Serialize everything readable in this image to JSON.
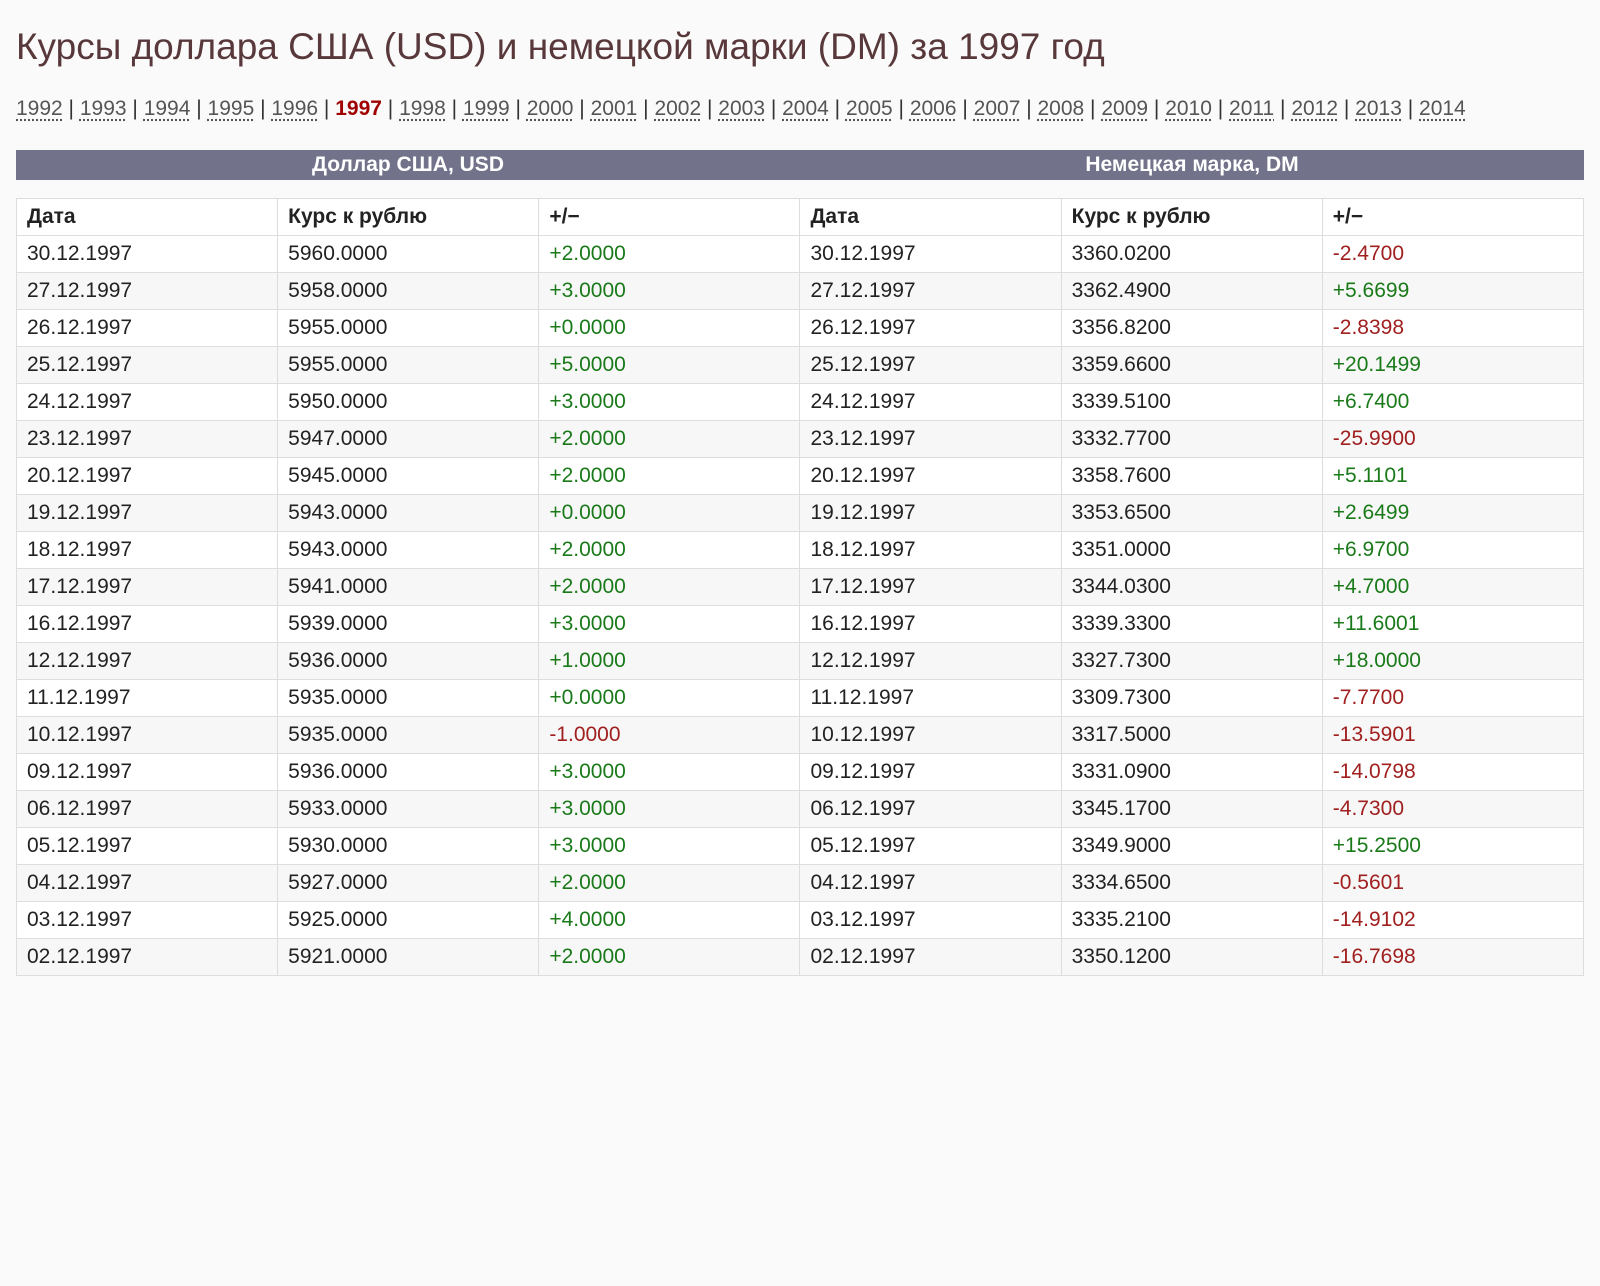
{
  "title": "Курсы доллара США (USD) и немецкой марки (DM) за 1997 год",
  "years": {
    "list": [
      "1992",
      "1993",
      "1994",
      "1995",
      "1996",
      "1997",
      "1998",
      "1999",
      "2000",
      "2001",
      "2002",
      "2003",
      "2004",
      "2005",
      "2006",
      "2007",
      "2008",
      "2009",
      "2010",
      "2011",
      "2012",
      "2013",
      "2014"
    ],
    "current": "1997"
  },
  "sections": {
    "usd": "Доллар США, USD",
    "dm": "Немецкая марка, DM"
  },
  "columns": [
    "Дата",
    "Курс к рублю",
    "+/−",
    "Дата",
    "Курс к рублю",
    "+/−"
  ],
  "rows": [
    [
      "30.12.1997",
      "5960.0000",
      "+2.0000",
      "30.12.1997",
      "3360.0200",
      "-2.4700"
    ],
    [
      "27.12.1997",
      "5958.0000",
      "+3.0000",
      "27.12.1997",
      "3362.4900",
      "+5.6699"
    ],
    [
      "26.12.1997",
      "5955.0000",
      "+0.0000",
      "26.12.1997",
      "3356.8200",
      "-2.8398"
    ],
    [
      "25.12.1997",
      "5955.0000",
      "+5.0000",
      "25.12.1997",
      "3359.6600",
      "+20.1499"
    ],
    [
      "24.12.1997",
      "5950.0000",
      "+3.0000",
      "24.12.1997",
      "3339.5100",
      "+6.7400"
    ],
    [
      "23.12.1997",
      "5947.0000",
      "+2.0000",
      "23.12.1997",
      "3332.7700",
      "-25.9900"
    ],
    [
      "20.12.1997",
      "5945.0000",
      "+2.0000",
      "20.12.1997",
      "3358.7600",
      "+5.1101"
    ],
    [
      "19.12.1997",
      "5943.0000",
      "+0.0000",
      "19.12.1997",
      "3353.6500",
      "+2.6499"
    ],
    [
      "18.12.1997",
      "5943.0000",
      "+2.0000",
      "18.12.1997",
      "3351.0000",
      "+6.9700"
    ],
    [
      "17.12.1997",
      "5941.0000",
      "+2.0000",
      "17.12.1997",
      "3344.0300",
      "+4.7000"
    ],
    [
      "16.12.1997",
      "5939.0000",
      "+3.0000",
      "16.12.1997",
      "3339.3300",
      "+11.6001"
    ],
    [
      "12.12.1997",
      "5936.0000",
      "+1.0000",
      "12.12.1997",
      "3327.7300",
      "+18.0000"
    ],
    [
      "11.12.1997",
      "5935.0000",
      "+0.0000",
      "11.12.1997",
      "3309.7300",
      "-7.7700"
    ],
    [
      "10.12.1997",
      "5935.0000",
      "-1.0000",
      "10.12.1997",
      "3317.5000",
      "-13.5901"
    ],
    [
      "09.12.1997",
      "5936.0000",
      "+3.0000",
      "09.12.1997",
      "3331.0900",
      "-14.0798"
    ],
    [
      "06.12.1997",
      "5933.0000",
      "+3.0000",
      "06.12.1997",
      "3345.1700",
      "-4.7300"
    ],
    [
      "05.12.1997",
      "5930.0000",
      "+3.0000",
      "05.12.1997",
      "3349.9000",
      "+15.2500"
    ],
    [
      "04.12.1997",
      "5927.0000",
      "+2.0000",
      "04.12.1997",
      "3334.6500",
      "-0.5601"
    ],
    [
      "03.12.1997",
      "5925.0000",
      "+4.0000",
      "03.12.1997",
      "3335.2100",
      "-14.9102"
    ],
    [
      "02.12.1997",
      "5921.0000",
      "+2.0000",
      "02.12.1997",
      "3350.1200",
      "-16.7698"
    ]
  ],
  "style": {
    "background_color": "#fafafa",
    "title_color": "#58383a",
    "title_fontsize": 37,
    "body_fontsize": 21,
    "header_band_bg": "#72738a",
    "header_band_fg": "#ffffff",
    "link_color": "#555555",
    "current_year_color": "#a00000",
    "positive_color": "#1a7a1a",
    "negative_color": "#a02020",
    "border_color": "#dddddd",
    "row_alt_bg": "#f7f7f7"
  }
}
